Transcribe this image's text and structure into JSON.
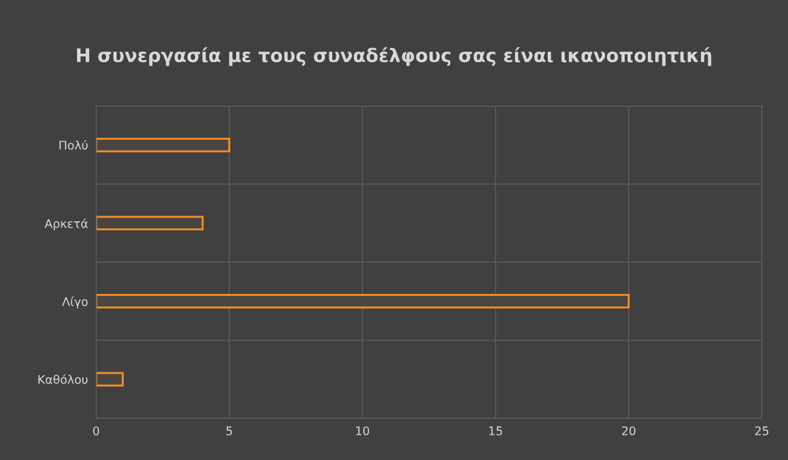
{
  "chart_data": {
    "type": "bar",
    "orientation": "horizontal",
    "title": "Η συνεργασία με τους συναδέλφους σας είναι ικανοποιητική",
    "categories": [
      "Πολύ",
      "Αρκετά",
      "Λίγο",
      "Καθόλου"
    ],
    "series": [
      {
        "color": "#f0902a",
        "values": [
          5,
          4,
          20,
          1
        ]
      }
    ],
    "xlim": [
      0,
      25
    ],
    "xticks": [
      0,
      5,
      10,
      15,
      20,
      25
    ],
    "grid": true
  }
}
